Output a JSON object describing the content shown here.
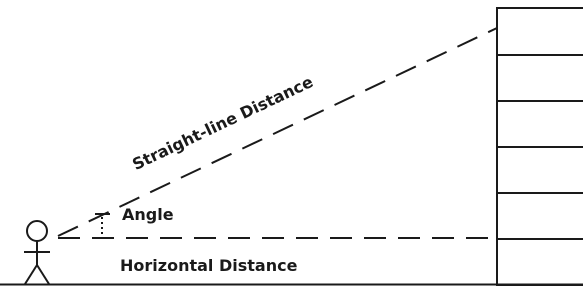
{
  "labels": {
    "straight_line": "Straight-line Distance",
    "angle": "Angle",
    "horizontal": "Horizontal Distance"
  }
}
